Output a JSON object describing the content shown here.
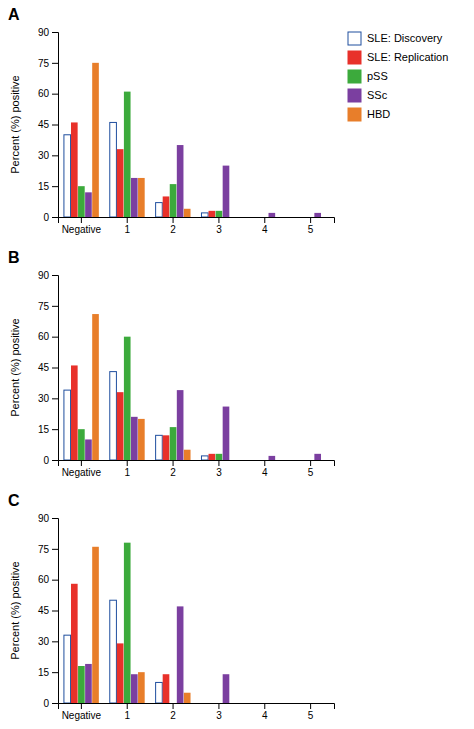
{
  "chart_data": [
    {
      "type": "bar",
      "title": "A",
      "ylabel": "Percent (%) positive",
      "categories": [
        "Negative",
        "1",
        "2",
        "3",
        "4",
        "5"
      ],
      "series": [
        {
          "name": "SLE: Discovery",
          "color": "#1f4e9e",
          "values": [
            40,
            46,
            7,
            2,
            0,
            0
          ]
        },
        {
          "name": "SLE: Replication",
          "color": "#e8312a",
          "values": [
            46,
            33,
            10,
            3,
            0,
            0
          ]
        },
        {
          "name": "pSS",
          "color": "#3caa3c",
          "values": [
            15,
            61,
            16,
            3,
            0,
            0
          ]
        },
        {
          "name": "SSc",
          "color": "#7b3fa0",
          "values": [
            12,
            19,
            35,
            25,
            2,
            2
          ]
        },
        {
          "name": "HBD",
          "color": "#e87e2a",
          "values": [
            75,
            19,
            4,
            0,
            0,
            0
          ]
        }
      ],
      "ylim": [
        0,
        90
      ],
      "yticks": [
        0,
        15,
        30,
        45,
        60,
        75,
        90
      ],
      "grid": false,
      "legend": "right"
    },
    {
      "type": "bar",
      "title": "B",
      "ylabel": "Percent (%) positive",
      "categories": [
        "Negative",
        "1",
        "2",
        "3",
        "4",
        "5"
      ],
      "series": [
        {
          "name": "SLE: Discovery",
          "color": "#1f4e9e",
          "values": [
            34,
            43,
            12,
            2,
            0,
            0
          ]
        },
        {
          "name": "SLE: Replication",
          "color": "#e8312a",
          "values": [
            46,
            33,
            12,
            3,
            0,
            0
          ]
        },
        {
          "name": "pSS",
          "color": "#3caa3c",
          "values": [
            15,
            60,
            16,
            3,
            0,
            0
          ]
        },
        {
          "name": "SSc",
          "color": "#7b3fa0",
          "values": [
            10,
            21,
            34,
            26,
            2,
            3
          ]
        },
        {
          "name": "HBD",
          "color": "#e87e2a",
          "values": [
            71,
            20,
            5,
            0,
            0,
            0
          ]
        }
      ],
      "ylim": [
        0,
        90
      ],
      "yticks": [
        0,
        15,
        30,
        45,
        60,
        75,
        90
      ],
      "grid": false
    },
    {
      "type": "bar",
      "title": "C",
      "ylabel": "Percent (%) positive",
      "categories": [
        "Negative",
        "1",
        "2",
        "3",
        "4",
        "5"
      ],
      "series": [
        {
          "name": "SLE: Discovery",
          "color": "#1f4e9e",
          "values": [
            33,
            50,
            10,
            0,
            0,
            0
          ]
        },
        {
          "name": "SLE: Replication",
          "color": "#e8312a",
          "values": [
            58,
            29,
            14,
            0,
            0,
            0
          ]
        },
        {
          "name": "pSS",
          "color": "#3caa3c",
          "values": [
            18,
            78,
            0,
            0,
            0,
            0
          ]
        },
        {
          "name": "SSc",
          "color": "#7b3fa0",
          "values": [
            19,
            14,
            47,
            14,
            0,
            0
          ]
        },
        {
          "name": "HBD",
          "color": "#e87e2a",
          "values": [
            76,
            15,
            5,
            0,
            0,
            0
          ]
        }
      ],
      "ylim": [
        0,
        90
      ],
      "yticks": [
        0,
        15,
        30,
        45,
        60,
        75,
        90
      ],
      "grid": false
    }
  ]
}
